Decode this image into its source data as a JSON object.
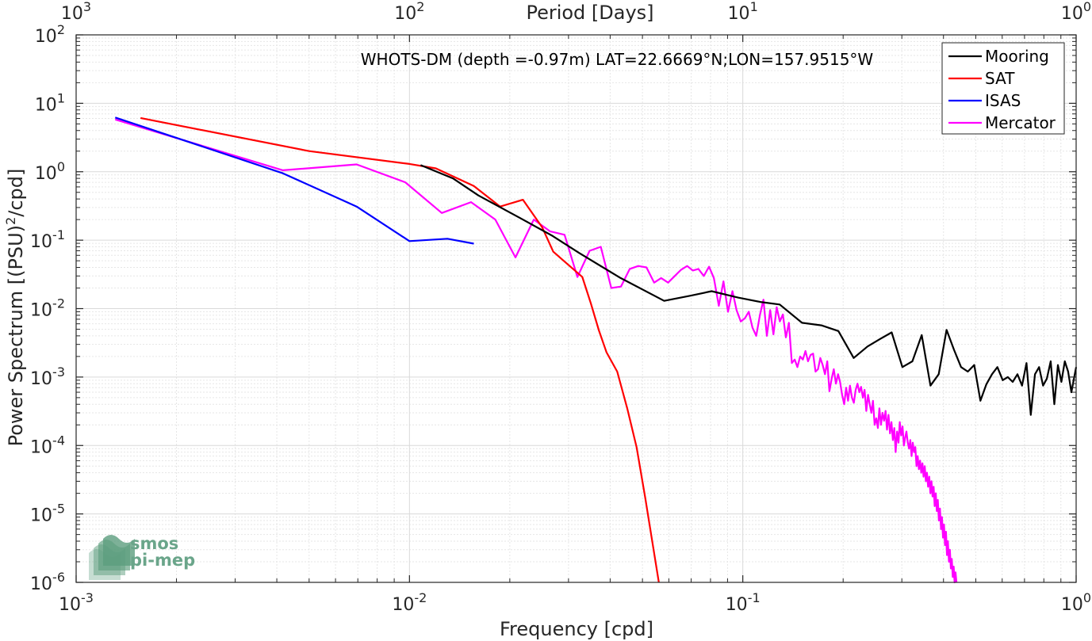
{
  "chart_data": {
    "type": "line",
    "title": "WHOTS-DM (depth =-0.97m) LAT=22.6669°N;LON=157.9515°W",
    "xlabel": "Frequency [cpd]",
    "ylabel_main": "Power Spectrum [(PSU)",
    "ylabel_sup": "2",
    "ylabel_tail": "/cpd]",
    "top_axis_label": "Period [Days]",
    "x_scale": "log",
    "y_scale": "log",
    "xlim": [
      0.001,
      1
    ],
    "ylim": [
      1e-06,
      100
    ],
    "grid": true,
    "legend_position": "top-right",
    "x_ticks": [
      {
        "value": 0.001,
        "base": "10",
        "exp": "-3"
      },
      {
        "value": 0.01,
        "base": "10",
        "exp": "-2"
      },
      {
        "value": 0.1,
        "base": "10",
        "exp": "-1"
      },
      {
        "value": 1,
        "base": "10",
        "exp": "0"
      }
    ],
    "y_ticks": [
      {
        "value": 1e-06,
        "base": "10",
        "exp": "-6"
      },
      {
        "value": 1e-05,
        "base": "10",
        "exp": "-5"
      },
      {
        "value": 0.0001,
        "base": "10",
        "exp": "-4"
      },
      {
        "value": 0.001,
        "base": "10",
        "exp": "-3"
      },
      {
        "value": 0.01,
        "base": "10",
        "exp": "-2"
      },
      {
        "value": 0.1,
        "base": "10",
        "exp": "-1"
      },
      {
        "value": 1,
        "base": "10",
        "exp": "0"
      },
      {
        "value": 10,
        "base": "10",
        "exp": "1"
      },
      {
        "value": 100,
        "base": "10",
        "exp": "2"
      }
    ],
    "top_ticks": [
      {
        "freq": 0.001,
        "base": "10",
        "exp": "3"
      },
      {
        "freq": 0.01,
        "base": "10",
        "exp": "2"
      },
      {
        "freq": 0.1,
        "base": "10",
        "exp": "1"
      },
      {
        "freq": 1,
        "base": "10",
        "exp": "0"
      }
    ],
    "series": [
      {
        "name": "Mooring",
        "color": "#000000",
        "points": [
          [
            0.0108,
            1.25
          ],
          [
            0.0135,
            0.8
          ],
          [
            0.0161,
            0.45
          ],
          [
            0.0215,
            0.21
          ],
          [
            0.0269,
            0.115
          ],
          [
            0.0323,
            0.065
          ],
          [
            0.043,
            0.028
          ],
          [
            0.0581,
            0.013
          ],
          [
            0.0699,
            0.0155
          ],
          [
            0.0806,
            0.018
          ],
          [
            0.0968,
            0.0145
          ],
          [
            0.1129,
            0.0125
          ],
          [
            0.129,
            0.0115
          ],
          [
            0.1505,
            0.0062
          ],
          [
            0.172,
            0.0057
          ],
          [
            0.1935,
            0.0047
          ],
          [
            0.2151,
            0.0019
          ],
          [
            0.2366,
            0.0028
          ],
          [
            0.2581,
            0.0036
          ],
          [
            0.2796,
            0.0045
          ],
          [
            0.3011,
            0.0014
          ],
          [
            0.3226,
            0.0017
          ],
          [
            0.3441,
            0.0041
          ],
          [
            0.3656,
            0.00075
          ],
          [
            0.3871,
            0.0011
          ],
          [
            0.4086,
            0.0049
          ],
          [
            0.4301,
            0.0025
          ],
          [
            0.4516,
            0.0014
          ],
          [
            0.4731,
            0.0012
          ],
          [
            0.4946,
            0.0015
          ],
          [
            0.5161,
            0.00045
          ],
          [
            0.5376,
            0.00078
          ],
          [
            0.5591,
            0.0011
          ],
          [
            0.5806,
            0.0014
          ],
          [
            0.6022,
            0.0009
          ],
          [
            0.6237,
            0.001
          ],
          [
            0.6452,
            0.00085
          ],
          [
            0.6667,
            0.0011
          ],
          [
            0.6882,
            0.00075
          ],
          [
            0.7097,
            0.0016
          ],
          [
            0.7312,
            0.00028
          ],
          [
            0.7527,
            0.0011
          ],
          [
            0.7742,
            0.0014
          ],
          [
            0.7957,
            0.00075
          ],
          [
            0.8172,
            0.00095
          ],
          [
            0.8387,
            0.0017
          ],
          [
            0.8602,
            0.0004
          ],
          [
            0.8817,
            0.0015
          ],
          [
            0.9032,
            0.00085
          ],
          [
            0.9247,
            0.0017
          ],
          [
            0.9462,
            0.0012
          ],
          [
            0.9677,
            0.0006
          ],
          [
            1.0,
            0.0014
          ]
        ]
      },
      {
        "name": "SAT",
        "color": "#ff0000",
        "points": [
          [
            0.00156,
            6.1
          ],
          [
            0.005,
            2.0
          ],
          [
            0.01,
            1.3
          ],
          [
            0.012,
            1.12
          ],
          [
            0.0156,
            0.62
          ],
          [
            0.0187,
            0.31
          ],
          [
            0.0219,
            0.39
          ],
          [
            0.025,
            0.155
          ],
          [
            0.027,
            0.068
          ],
          [
            0.029,
            0.05
          ],
          [
            0.033,
            0.029
          ],
          [
            0.035,
            0.012
          ],
          [
            0.037,
            0.0048
          ],
          [
            0.039,
            0.0023
          ],
          [
            0.042,
            0.0012
          ],
          [
            0.045,
            0.00035
          ],
          [
            0.048,
            9.5e-05
          ],
          [
            0.051,
            1.7e-05
          ],
          [
            0.056,
            1e-06
          ]
        ]
      },
      {
        "name": "ISAS",
        "color": "#0000ff",
        "points": [
          [
            0.00131,
            6.2
          ],
          [
            0.00417,
            0.95
          ],
          [
            0.00694,
            0.31
          ],
          [
            0.01,
            0.097
          ],
          [
            0.013,
            0.105
          ],
          [
            0.0156,
            0.089
          ]
        ]
      },
      {
        "name": "Mercator",
        "color": "#ff00ff",
        "points": [
          [
            0.00131,
            5.8
          ],
          [
            0.00417,
            1.05
          ],
          [
            0.00694,
            1.28
          ],
          [
            0.00972,
            0.7
          ],
          [
            0.0125,
            0.25
          ],
          [
            0.0153,
            0.36
          ],
          [
            0.0181,
            0.2
          ],
          [
            0.0208,
            0.056
          ],
          [
            0.0236,
            0.2
          ],
          [
            0.0264,
            0.135
          ],
          [
            0.0292,
            0.12
          ],
          [
            0.0319,
            0.029
          ],
          [
            0.0347,
            0.07
          ],
          [
            0.0375,
            0.08
          ],
          [
            0.0403,
            0.02
          ],
          [
            0.0431,
            0.021
          ],
          [
            0.0458,
            0.038
          ],
          [
            0.0486,
            0.042
          ],
          [
            0.0514,
            0.04
          ],
          [
            0.0542,
            0.024
          ],
          [
            0.0569,
            0.028
          ],
          [
            0.0597,
            0.024
          ],
          [
            0.0625,
            0.03
          ],
          [
            0.0653,
            0.037
          ],
          [
            0.0681,
            0.042
          ],
          [
            0.0708,
            0.036
          ],
          [
            0.0736,
            0.038
          ],
          [
            0.0764,
            0.03
          ],
          [
            0.0792,
            0.041
          ],
          [
            0.0819,
            0.028
          ],
          [
            0.0847,
            0.011
          ],
          [
            0.0875,
            0.025
          ],
          [
            0.0903,
            0.009
          ],
          [
            0.0931,
            0.018
          ],
          [
            0.0958,
            0.0095
          ],
          [
            0.0986,
            0.0065
          ],
          [
            0.1014,
            0.0072
          ],
          [
            0.1042,
            0.009
          ],
          [
            0.1069,
            0.0053
          ],
          [
            0.1097,
            0.004
          ],
          [
            0.1125,
            0.008
          ],
          [
            0.1153,
            0.0135
          ],
          [
            0.1181,
            0.004
          ],
          [
            0.1208,
            0.0095
          ],
          [
            0.1236,
            0.0042
          ],
          [
            0.1264,
            0.0105
          ],
          [
            0.1292,
            0.0065
          ],
          [
            0.1319,
            0.0082
          ],
          [
            0.1347,
            0.0038
          ],
          [
            0.1375,
            0.0062
          ],
          [
            0.1403,
            0.0016
          ],
          [
            0.1431,
            0.0018
          ],
          [
            0.1458,
            0.0014
          ],
          [
            0.1486,
            0.002
          ],
          [
            0.1514,
            0.0018
          ],
          [
            0.1542,
            0.0024
          ],
          [
            0.1569,
            0.0017
          ],
          [
            0.1597,
            0.0021
          ],
          [
            0.1625,
            0.0022
          ],
          [
            0.1653,
            0.0012
          ],
          [
            0.1681,
            0.0013
          ],
          [
            0.1708,
            0.0019
          ],
          [
            0.1736,
            0.0015
          ],
          [
            0.1764,
            0.0011
          ],
          [
            0.1792,
            0.0017
          ],
          [
            0.1819,
            0.00062
          ],
          [
            0.1847,
            0.00095
          ],
          [
            0.1875,
            0.0013
          ],
          [
            0.1903,
            0.0008
          ],
          [
            0.1931,
            0.0011
          ],
          [
            0.1958,
            0.00085
          ],
          [
            0.1986,
            0.00055
          ],
          [
            0.2014,
            0.0004
          ],
          [
            0.2042,
            0.0007
          ],
          [
            0.2069,
            0.00045
          ],
          [
            0.2097,
            0.00075
          ],
          [
            0.2125,
            0.0005
          ],
          [
            0.2153,
            0.00042
          ],
          [
            0.2181,
            0.00065
          ],
          [
            0.2208,
            0.0008
          ],
          [
            0.2236,
            0.0006
          ],
          [
            0.2264,
            0.00072
          ],
          [
            0.2292,
            0.0005
          ],
          [
            0.2319,
            0.00065
          ],
          [
            0.2347,
            0.00032
          ],
          [
            0.2375,
            0.00055
          ],
          [
            0.2403,
            0.0004
          ],
          [
            0.2431,
            0.0003
          ],
          [
            0.2458,
            0.00045
          ],
          [
            0.2486,
            0.0002
          ],
          [
            0.2514,
            0.00025
          ],
          [
            0.2542,
            0.00018
          ],
          [
            0.2569,
            0.00035
          ],
          [
            0.2597,
            0.0002
          ],
          [
            0.2625,
            0.0003
          ],
          [
            0.2653,
            0.00023
          ],
          [
            0.2681,
            0.00032
          ],
          [
            0.2708,
            0.00017
          ],
          [
            0.2736,
            0.00028
          ],
          [
            0.2764,
            0.00015
          ],
          [
            0.2792,
            0.00022
          ],
          [
            0.2819,
            0.00012
          ],
          [
            0.2847,
            0.00018
          ],
          [
            0.2875,
            8e-05
          ],
          [
            0.2903,
            0.00016
          ],
          [
            0.2931,
            0.00011
          ],
          [
            0.2958,
            0.00022
          ],
          [
            0.2986,
            0.00014
          ],
          [
            0.3014,
            0.00019
          ],
          [
            0.3042,
            0.0001
          ],
          [
            0.3069,
            0.00013
          ],
          [
            0.3097,
            0.00016
          ],
          [
            0.3125,
            0.00011
          ],
          [
            0.3153,
            9e-05
          ],
          [
            0.3181,
            0.00012
          ],
          [
            0.3208,
            7e-05
          ],
          [
            0.3236,
            0.00011
          ],
          [
            0.3264,
            8e-05
          ],
          [
            0.3292,
            9.5e-05
          ],
          [
            0.3319,
            5e-05
          ],
          [
            0.3347,
            7e-05
          ],
          [
            0.3375,
            4.5e-05
          ],
          [
            0.3403,
            6e-05
          ],
          [
            0.3431,
            4e-05
          ],
          [
            0.3458,
            5.5e-05
          ],
          [
            0.3486,
            3.5e-05
          ],
          [
            0.3514,
            5e-05
          ],
          [
            0.3542,
            3e-05
          ],
          [
            0.3569,
            4e-05
          ],
          [
            0.3597,
            2.5e-05
          ],
          [
            0.3625,
            3.5e-05
          ],
          [
            0.3653,
            2e-05
          ],
          [
            0.3681,
            3e-05
          ],
          [
            0.3708,
            1.8e-05
          ],
          [
            0.3736,
            2.5e-05
          ],
          [
            0.3764,
            1.3e-05
          ],
          [
            0.3792,
            2e-05
          ],
          [
            0.3819,
            1.1e-05
          ],
          [
            0.3847,
            1.6e-05
          ],
          [
            0.3875,
            8e-06
          ],
          [
            0.3903,
            1.2e-05
          ],
          [
            0.3931,
            6e-06
          ],
          [
            0.3958,
            9e-06
          ],
          [
            0.3986,
            4.5e-06
          ],
          [
            0.4014,
            7e-06
          ],
          [
            0.4042,
            3.5e-06
          ],
          [
            0.4069,
            5.5e-06
          ],
          [
            0.4097,
            2.5e-06
          ],
          [
            0.4125,
            4e-06
          ],
          [
            0.4153,
            2e-06
          ],
          [
            0.4181,
            3e-06
          ],
          [
            0.4208,
            1.6e-06
          ],
          [
            0.4236,
            2.2e-06
          ],
          [
            0.4264,
            1.2e-06
          ],
          [
            0.4292,
            1.7e-06
          ],
          [
            0.4319,
            1e-06
          ],
          [
            0.4347,
            1.4e-06
          ],
          [
            0.4375,
            1e-06
          ]
        ]
      }
    ]
  },
  "logo": {
    "line1": "smos",
    "line2": "pi-mep",
    "text_color": "#6aa58a",
    "mark_color": "#5d9e7e"
  }
}
